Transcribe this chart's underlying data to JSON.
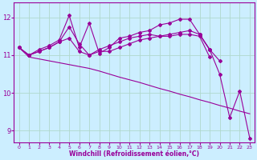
{
  "x": [
    0,
    1,
    2,
    3,
    4,
    5,
    6,
    7,
    8,
    9,
    10,
    11,
    12,
    13,
    14,
    15,
    16,
    17,
    18,
    19,
    20,
    21,
    22,
    23
  ],
  "line1": [
    11.2,
    11.0,
    11.1,
    11.2,
    11.35,
    11.75,
    11.3,
    11.0,
    11.15,
    11.25,
    11.35,
    11.45,
    11.5,
    11.55,
    11.5,
    11.55,
    11.6,
    11.65,
    11.55,
    11.15,
    10.85,
    null,
    null,
    null
  ],
  "line2": [
    11.2,
    11.0,
    11.15,
    11.25,
    11.4,
    12.05,
    11.2,
    11.85,
    11.05,
    11.2,
    11.45,
    11.5,
    11.6,
    11.65,
    11.8,
    11.85,
    11.95,
    11.95,
    11.55,
    11.15,
    null,
    null,
    null,
    null
  ],
  "line3": [
    11.2,
    11.0,
    11.1,
    11.2,
    11.35,
    11.45,
    11.1,
    11.0,
    11.1,
    11.1,
    11.2,
    11.3,
    11.4,
    11.45,
    11.5,
    11.5,
    11.55,
    11.55,
    11.5,
    10.95,
    null,
    null,
    null,
    null
  ],
  "line4": [
    11.2,
    10.95,
    10.9,
    10.85,
    10.8,
    10.75,
    10.7,
    10.65,
    10.58,
    10.5,
    10.42,
    10.35,
    10.28,
    10.2,
    10.12,
    10.05,
    9.97,
    9.9,
    9.82,
    9.75,
    9.67,
    9.6,
    9.52,
    9.45
  ],
  "line5": [
    null,
    null,
    null,
    null,
    null,
    null,
    null,
    null,
    null,
    null,
    null,
    null,
    null,
    null,
    null,
    null,
    null,
    null,
    11.55,
    11.15,
    10.5,
    9.35,
    10.05,
    8.8
  ],
  "line_color": "#990099",
  "bg_color": "#cceeff",
  "grid_color": "#aaddcc",
  "xlabel": "Windchill (Refroidissement éolien,°C)",
  "ylim": [
    8.7,
    12.4
  ],
  "xlim": [
    -0.5,
    23.5
  ],
  "yticks": [
    9,
    10,
    11,
    12
  ],
  "xticks": [
    0,
    1,
    2,
    3,
    4,
    5,
    6,
    7,
    8,
    9,
    10,
    11,
    12,
    13,
    14,
    15,
    16,
    17,
    18,
    19,
    20,
    21,
    22,
    23
  ]
}
